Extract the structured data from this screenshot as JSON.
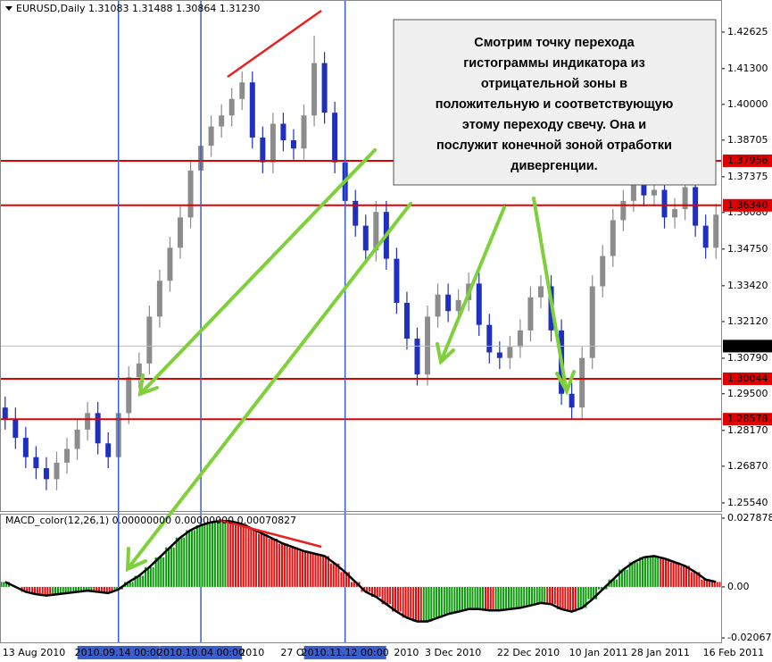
{
  "chart_data": [
    {
      "type": "candlestick",
      "title": "EURUSD,Daily  1.31083 1.31488 1.30864 1.31230",
      "up_color": "#8c8c8c",
      "down_color": "#1f2fc0",
      "ylim": [
        1.2531,
        1.4379
      ],
      "yticks": [
        {
          "value": 1.42625,
          "label": "1.42625"
        },
        {
          "value": 1.413,
          "label": "1.41300"
        },
        {
          "value": 1.4,
          "label": "1.40000"
        },
        {
          "value": 1.38705,
          "label": "1.38705"
        },
        {
          "value": 1.37375,
          "label": "1.37375"
        },
        {
          "value": 1.3608,
          "label": "1.36080"
        },
        {
          "value": 1.3475,
          "label": "1.34750"
        },
        {
          "value": 1.3342,
          "label": "1.33420"
        },
        {
          "value": 1.3212,
          "label": "1.32120"
        },
        {
          "value": 1.3079,
          "label": "1.30790"
        },
        {
          "value": 1.295,
          "label": "1.29500"
        },
        {
          "value": 1.2817,
          "label": "1.28170"
        },
        {
          "value": 1.2687,
          "label": "1.26870"
        },
        {
          "value": 1.2554,
          "label": "1.25540"
        }
      ],
      "levels": [
        {
          "value": 1.37956,
          "label": "1.37956",
          "color": "#e00000"
        },
        {
          "value": 1.3634,
          "label": "1.36340",
          "color": "#e00000"
        },
        {
          "value": 1.30044,
          "label": "1.30044",
          "color": "#e00000"
        },
        {
          "value": 1.28578,
          "label": "1.28578",
          "color": "#e00000"
        }
      ],
      "current_price": {
        "value": 1.3123,
        "label": "1.31230",
        "color": "#000000"
      },
      "categories": [
        "13 Aug 2010",
        null,
        null,
        null,
        null,
        null,
        null,
        null,
        null,
        null,
        null,
        "2010.09.14 00:00",
        null,
        null,
        null,
        null,
        null,
        null,
        null,
        "2010.10.04 00:00",
        null,
        null,
        null,
        "2010",
        null,
        null,
        null,
        "27 O",
        null,
        null,
        null,
        null,
        null,
        "2010.11.12 00:00",
        null,
        null,
        null,
        null,
        "2010",
        null,
        null,
        "3 Dec 2010",
        null,
        null,
        null,
        null,
        null,
        null,
        "22 Dec 2010",
        null,
        null,
        null,
        null,
        null,
        null,
        "10 Jan 2011",
        null,
        null,
        null,
        null,
        null,
        "28 Jan 2011",
        null,
        null,
        null,
        null,
        null,
        null,
        "16 Feb 2011",
        null
      ],
      "vertical_lines": [
        "2010.09.14 00:00",
        "2010.10.04 00:00",
        "2010.11.12 00:00"
      ],
      "vertical_line_color": "#3a5fcd",
      "open": [
        1.29,
        1.286,
        1.279,
        1.272,
        1.268,
        1.264,
        1.27,
        1.275,
        1.282,
        1.288,
        1.277,
        1.272,
        1.288,
        1.301,
        1.306,
        1.323,
        1.336,
        1.348,
        1.359,
        1.376,
        1.385,
        1.392,
        1.396,
        1.402,
        1.408,
        1.388,
        1.379,
        1.393,
        1.387,
        1.384,
        1.396,
        1.415,
        1.397,
        1.379,
        1.365,
        1.356,
        1.347,
        1.361,
        1.344,
        1.328,
        1.315,
        1.302,
        1.323,
        1.331,
        1.325,
        1.329,
        1.335,
        1.32,
        1.31,
        1.308,
        1.312,
        1.318,
        1.33,
        1.334,
        1.318,
        1.295,
        1.29,
        1.308,
        1.334,
        1.345,
        1.358,
        1.365,
        1.372,
        1.367,
        1.369,
        1.359,
        1.362,
        1.37,
        1.356,
        1.348
      ],
      "high": [
        1.294,
        1.29,
        1.283,
        1.276,
        1.272,
        1.274,
        1.279,
        1.286,
        1.292,
        1.292,
        1.281,
        1.292,
        1.305,
        1.31,
        1.327,
        1.34,
        1.352,
        1.363,
        1.38,
        1.389,
        1.396,
        1.4,
        1.406,
        1.412,
        1.412,
        1.392,
        1.397,
        1.397,
        1.391,
        1.4,
        1.425,
        1.419,
        1.401,
        1.383,
        1.369,
        1.36,
        1.365,
        1.365,
        1.348,
        1.332,
        1.319,
        1.327,
        1.335,
        1.335,
        1.333,
        1.339,
        1.339,
        1.324,
        1.314,
        1.316,
        1.322,
        1.334,
        1.338,
        1.338,
        1.322,
        1.299,
        1.312,
        1.338,
        1.349,
        1.362,
        1.369,
        1.376,
        1.376,
        1.373,
        1.373,
        1.366,
        1.374,
        1.374,
        1.36,
        1.364
      ],
      "low": [
        1.282,
        1.275,
        1.268,
        1.264,
        1.26,
        1.26,
        1.266,
        1.271,
        1.278,
        1.273,
        1.268,
        1.268,
        1.284,
        1.297,
        1.302,
        1.319,
        1.332,
        1.344,
        1.355,
        1.372,
        1.381,
        1.388,
        1.392,
        1.398,
        1.384,
        1.375,
        1.375,
        1.383,
        1.38,
        1.38,
        1.392,
        1.393,
        1.375,
        1.361,
        1.352,
        1.343,
        1.343,
        1.34,
        1.324,
        1.311,
        1.298,
        1.298,
        1.319,
        1.321,
        1.321,
        1.325,
        1.316,
        1.306,
        1.304,
        1.304,
        1.308,
        1.314,
        1.326,
        1.314,
        1.291,
        1.286,
        1.286,
        1.304,
        1.33,
        1.341,
        1.354,
        1.361,
        1.363,
        1.363,
        1.355,
        1.355,
        1.358,
        1.352,
        1.344,
        1.344
      ],
      "close": [
        1.286,
        1.279,
        1.272,
        1.268,
        1.264,
        1.27,
        1.275,
        1.282,
        1.288,
        1.277,
        1.272,
        1.288,
        1.301,
        1.306,
        1.323,
        1.336,
        1.348,
        1.359,
        1.376,
        1.385,
        1.392,
        1.396,
        1.402,
        1.408,
        1.388,
        1.379,
        1.393,
        1.387,
        1.384,
        1.396,
        1.415,
        1.397,
        1.379,
        1.365,
        1.356,
        1.347,
        1.361,
        1.344,
        1.328,
        1.315,
        1.302,
        1.323,
        1.331,
        1.325,
        1.329,
        1.335,
        1.32,
        1.31,
        1.308,
        1.312,
        1.318,
        1.33,
        1.334,
        1.318,
        1.295,
        1.29,
        1.308,
        1.334,
        1.345,
        1.358,
        1.365,
        1.372,
        1.367,
        1.369,
        1.359,
        1.362,
        1.37,
        1.356,
        1.348,
        1.36
      ],
      "annotation": [
        "Смотрим точку перехода",
        "гистограммы индикатора из",
        "отрицательной зоны в",
        "положительную и соответствующую",
        "этому переходу свечу. Она и",
        "послужит конечной зоной отработки",
        "дивергенции."
      ]
    },
    {
      "type": "histogram",
      "title": "MACD_color(12,26,1) 0.00000000 0.00000000 0.00070827",
      "up_color": "#0a9a0a",
      "down_color": "#e01010",
      "line_color": "#000000",
      "ylim": [
        -0.0221,
        0.0293
      ],
      "yticks": [
        0.027878,
        {
          "value": 0,
          "label": "0.00"
        },
        -0.020677
      ],
      "values": [
        0.002,
        0,
        -0.002,
        -0.003,
        -0.0035,
        -0.003,
        -0.0025,
        -0.002,
        -0.0015,
        -0.002,
        -0.0025,
        -0.001,
        0.002,
        0.0045,
        0.008,
        0.012,
        0.016,
        0.02,
        0.023,
        0.025,
        0.0262,
        0.0268,
        0.0265,
        0.0255,
        0.0235,
        0.0215,
        0.0195,
        0.0175,
        0.016,
        0.0145,
        0.0135,
        0.0125,
        0.0095,
        0.006,
        0.002,
        -0.002,
        -0.004,
        -0.007,
        -0.01,
        -0.0125,
        -0.014,
        -0.014,
        -0.0125,
        -0.011,
        -0.01,
        -0.009,
        -0.009,
        -0.0095,
        -0.0095,
        -0.009,
        -0.0085,
        -0.0075,
        -0.0065,
        -0.007,
        -0.009,
        -0.01,
        -0.0085,
        -0.005,
        -0.001,
        0.003,
        0.007,
        0.01,
        0.012,
        0.0125,
        0.0115,
        0.01,
        0.0085,
        0.006,
        0.003,
        0.002
      ]
    }
  ]
}
